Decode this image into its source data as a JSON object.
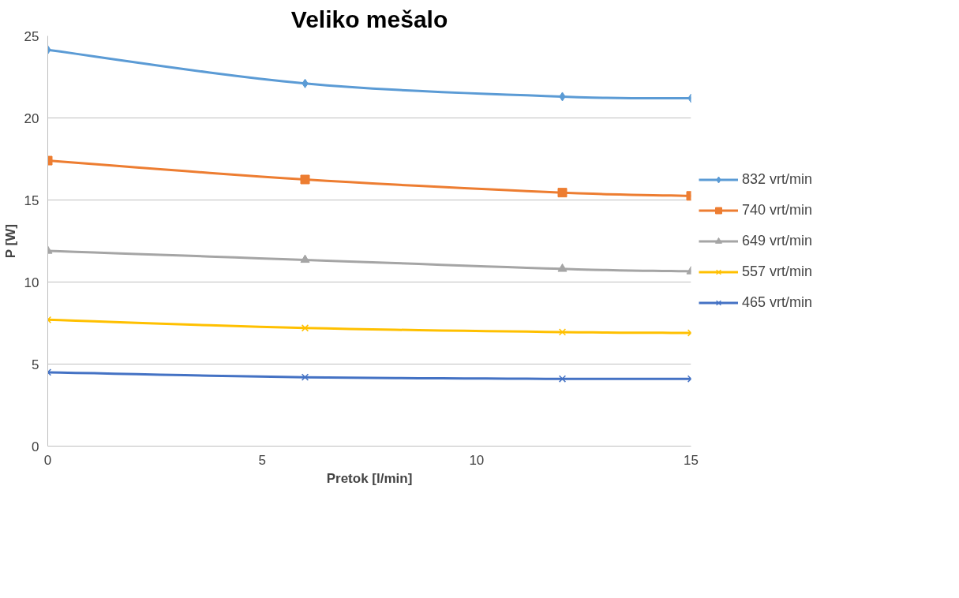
{
  "chart_data": {
    "type": "line",
    "title": "Veliko mešalo",
    "xlabel": "Pretok [l/min]",
    "ylabel": "P [W]",
    "x": [
      0,
      6,
      12,
      15
    ],
    "xlim": [
      0,
      15
    ],
    "xticks": [
      0,
      5,
      10,
      15
    ],
    "ylim": [
      0,
      25
    ],
    "yticks": [
      0,
      5,
      10,
      15,
      20,
      25
    ],
    "grid": "y",
    "legend": "right",
    "line_style": "solid",
    "series": [
      {
        "name": "832 vrt/min",
        "color": "#5b9bd5",
        "marker": "diamond",
        "values": [
          24.15,
          22.1,
          21.3,
          21.2
        ]
      },
      {
        "name": "740 vrt/min",
        "color": "#ed7d31",
        "marker": "square",
        "values": [
          17.4,
          16.25,
          15.45,
          15.25
        ]
      },
      {
        "name": "649 vrt/min",
        "color": "#a5a5a5",
        "marker": "triangle",
        "values": [
          11.9,
          11.35,
          10.8,
          10.65
        ]
      },
      {
        "name": "557 vrt/min",
        "color": "#ffc000",
        "marker": "cross",
        "values": [
          7.7,
          7.2,
          6.95,
          6.9
        ]
      },
      {
        "name": "465 vrt/min",
        "color": "#4472c4",
        "marker": "cross",
        "values": [
          4.5,
          4.2,
          4.1,
          4.1
        ]
      }
    ]
  }
}
